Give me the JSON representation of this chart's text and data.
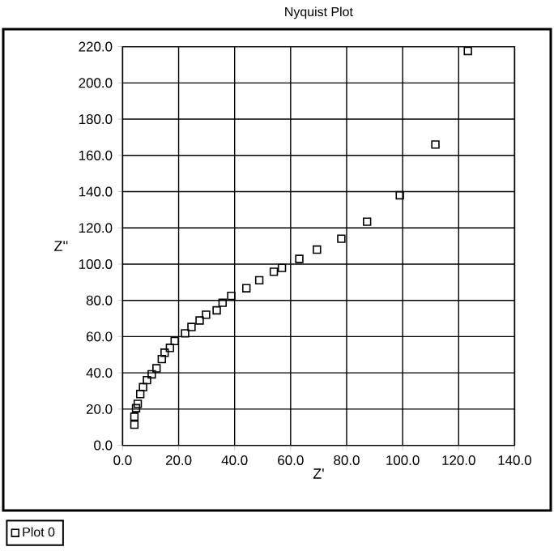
{
  "chart_data": {
    "type": "scatter",
    "title": "Nyquist Plot",
    "xlabel": "Z'",
    "ylabel": "Z''",
    "series": [
      {
        "name": "Plot 0",
        "color": "#000000",
        "x": [
          4.2,
          4.2,
          4.8,
          5.4,
          6.3,
          7.3,
          8.7,
          10.4,
          12.1,
          14.0,
          15.0,
          16.9,
          18.6,
          22.3,
          24.6,
          27.5,
          29.8,
          33.6,
          35.7,
          38.8,
          44.2,
          48.8,
          54.0,
          56.9,
          63.1,
          69.4,
          78.1,
          87.3,
          99.0,
          111.7,
          123.3
        ],
        "values": [
          11.4,
          15.8,
          20.5,
          22.9,
          28.3,
          32.1,
          36.0,
          39.2,
          42.5,
          47.6,
          51.1,
          53.8,
          57.6,
          61.8,
          65.3,
          68.9,
          72.1,
          74.5,
          78.7,
          82.5,
          86.7,
          91.1,
          95.8,
          97.9,
          102.9,
          108.0,
          114.0,
          123.4,
          138.0,
          166.0,
          217.6
        ]
      }
    ],
    "xlim": [
      0,
      140
    ],
    "ylim": [
      0,
      220
    ],
    "xticks": [
      {
        "value": 0,
        "label": "0.0"
      },
      {
        "value": 20,
        "label": "20.0"
      },
      {
        "value": 40,
        "label": "40.0"
      },
      {
        "value": 60,
        "label": "60.0"
      },
      {
        "value": 80,
        "label": "80.0"
      },
      {
        "value": 100,
        "label": "100.0"
      },
      {
        "value": 120,
        "label": "120.0"
      },
      {
        "value": 140,
        "label": "140.0"
      }
    ],
    "yticks": [
      {
        "value": 0,
        "label": "0.0"
      },
      {
        "value": 20,
        "label": "20.0"
      },
      {
        "value": 40,
        "label": "40.0"
      },
      {
        "value": 60,
        "label": "60.0"
      },
      {
        "value": 80,
        "label": "80.0"
      },
      {
        "value": 100,
        "label": "100.0"
      },
      {
        "value": 120,
        "label": "120.0"
      },
      {
        "value": 140,
        "label": "140.0"
      },
      {
        "value": 160,
        "label": "160.0"
      },
      {
        "value": 180,
        "label": "180.0"
      },
      {
        "value": 200,
        "label": "200.0"
      },
      {
        "value": 220,
        "label": "220.0"
      }
    ],
    "grid": true,
    "marker": "square",
    "legend": "bottom left"
  }
}
